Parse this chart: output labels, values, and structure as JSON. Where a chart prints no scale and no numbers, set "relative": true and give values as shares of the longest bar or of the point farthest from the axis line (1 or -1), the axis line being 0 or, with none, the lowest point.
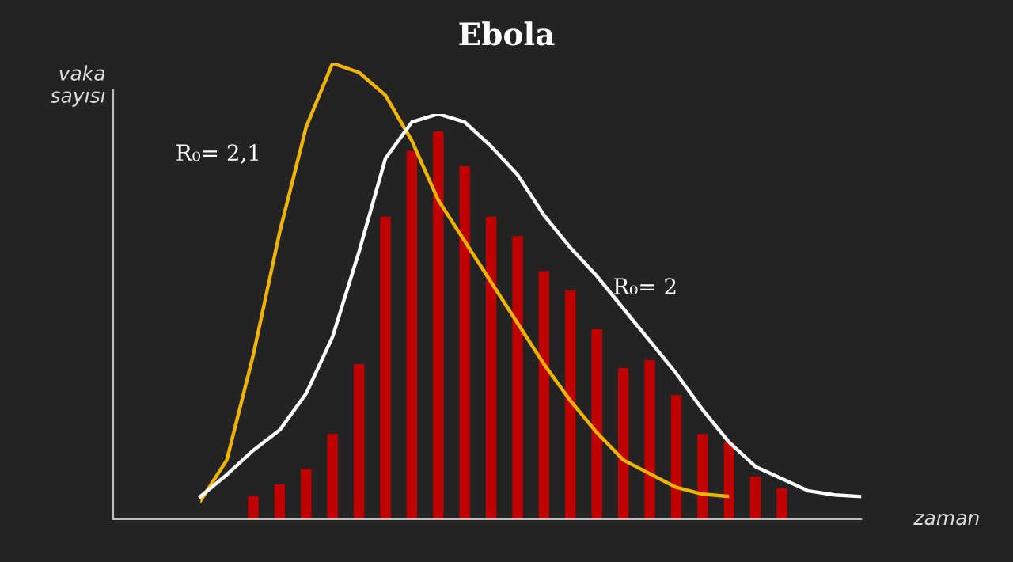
{
  "chart_data": [
    {
      "type": "bar",
      "title": "Ebola",
      "relative": true,
      "categories": [
        null,
        null,
        null,
        null,
        null,
        null,
        null,
        null,
        null,
        null,
        null,
        null,
        null,
        null,
        null,
        null,
        null,
        null,
        null,
        null,
        null
      ],
      "series": [
        {
          "color": "#c00000",
          "values": [
            0.06,
            0.09,
            0.13,
            0.22,
            0.4,
            0.78,
            0.95,
            1.0,
            0.91,
            0.78,
            0.73,
            0.64,
            0.59,
            0.49,
            0.39,
            0.41,
            0.32,
            0.22,
            0.2,
            0.11,
            0.08
          ]
        }
      ]
    },
    {
      "type": "line",
      "relative": true,
      "categories": [
        null,
        null,
        null,
        null,
        null,
        null,
        null,
        null,
        null,
        null,
        null,
        null,
        null,
        null,
        null,
        null,
        null,
        null,
        null,
        null,
        null
      ],
      "series": [
        {
          "name": "R₀= 2,1",
          "color": "#f0b400",
          "values": [
            0.04,
            0.13,
            0.36,
            0.63,
            0.86,
            1.0,
            0.98,
            0.93,
            0.83,
            0.7,
            0.61,
            0.52,
            0.43,
            0.34,
            0.26,
            0.19,
            0.13,
            0.1,
            0.07,
            0.055,
            0.05
          ]
        }
      ]
    },
    {
      "type": "line",
      "relative": true,
      "ylabel": "vaka\nsayısı",
      "xlabel": "zaman",
      "categories": [
        null,
        null,
        null,
        null,
        null,
        null,
        null,
        null,
        null,
        null,
        null,
        null,
        null,
        null,
        null,
        null,
        null,
        null,
        null,
        null,
        null,
        null,
        null,
        null,
        null,
        null
      ],
      "series": [
        {
          "name": "R₀= 2",
          "color": "#ffffff",
          "values": [
            0.056,
            0.11,
            0.17,
            0.22,
            0.31,
            0.45,
            0.66,
            0.89,
            0.98,
            1.0,
            0.98,
            0.92,
            0.85,
            0.75,
            0.67,
            0.6,
            0.52,
            0.44,
            0.36,
            0.27,
            0.19,
            0.13,
            0.1,
            0.07,
            0.06,
            0.056
          ]
        }
      ]
    }
  ]
}
